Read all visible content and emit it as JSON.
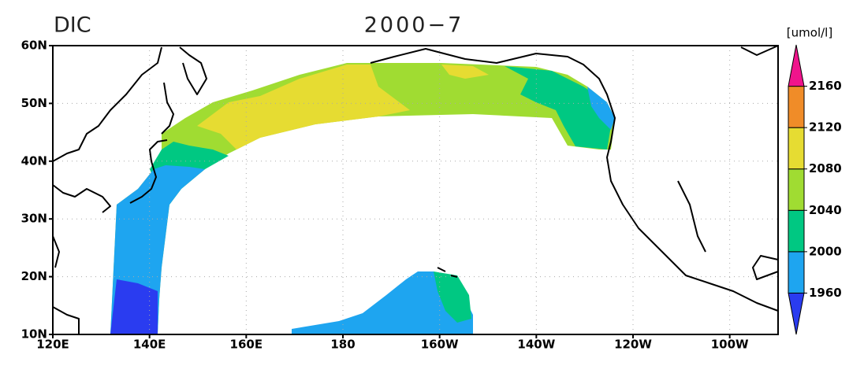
{
  "map": {
    "title": "DIC",
    "subtitle": "2000−7",
    "units": "[umol/l]",
    "xlim": [
      120,
      270
    ],
    "ylim": [
      10,
      60
    ],
    "xticks": [
      {
        "value": 120,
        "label": "120E"
      },
      {
        "value": 140,
        "label": "140E"
      },
      {
        "value": 160,
        "label": "160E"
      },
      180,
      {
        "value": 200,
        "label": "160W"
      },
      {
        "value": 220,
        "label": "140W"
      },
      {
        "value": 240,
        "label": "120W"
      },
      {
        "value": 260,
        "label": "100W"
      }
    ],
    "yticks": [
      {
        "value": 10,
        "label": "10N"
      },
      {
        "value": 20,
        "label": "20N"
      },
      {
        "value": 30,
        "label": "30N"
      },
      {
        "value": 40,
        "label": "40N"
      },
      {
        "value": 50,
        "label": "50N"
      },
      {
        "value": 60,
        "label": "60N"
      }
    ],
    "grid": true,
    "colorbar": {
      "levels": [
        1960,
        2000,
        2040,
        2080,
        2120,
        2160
      ],
      "colors": [
        "#2a3cf0",
        "#1ea5f0",
        "#00c882",
        "#a0dc32",
        "#e6dc32",
        "#f08c28",
        "#f0148c"
      ]
    }
  }
}
